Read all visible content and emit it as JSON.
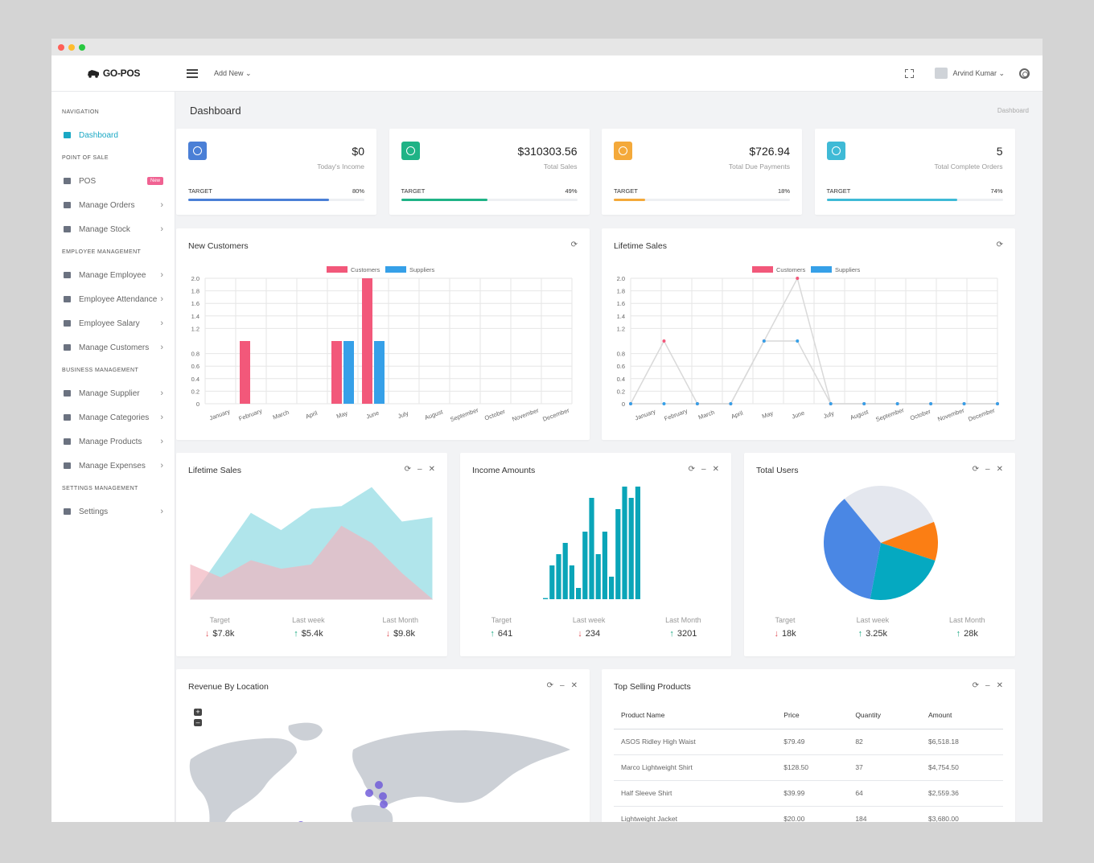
{
  "window": {
    "dots": [
      "#ff5f57",
      "#febc2e",
      "#28c840"
    ]
  },
  "topbar": {
    "logo": "GO-POS",
    "add_new": "Add New ⌄",
    "user_name": "Arvind Kumar ⌄"
  },
  "sidebar": {
    "sections": [
      {
        "title": "NAVIGATION",
        "items": [
          {
            "label": "Dashboard",
            "active": true
          }
        ]
      },
      {
        "title": "POINT OF SALE",
        "items": [
          {
            "label": "POS",
            "badge": "New"
          },
          {
            "label": "Manage Orders"
          },
          {
            "label": "Manage Stock"
          }
        ]
      },
      {
        "title": "EMPLOYEE MANAGEMENT",
        "items": [
          {
            "label": "Manage Employee"
          },
          {
            "label": "Employee Attendance"
          },
          {
            "label": "Employee Salary"
          },
          {
            "label": "Manage Customers"
          }
        ]
      },
      {
        "title": "BUSINESS MANAGEMENT",
        "items": [
          {
            "label": "Manage Supplier"
          },
          {
            "label": "Manage Categories"
          },
          {
            "label": "Manage Products"
          },
          {
            "label": "Manage Expenses"
          }
        ]
      },
      {
        "title": "SETTINGS MANAGEMENT",
        "items": [
          {
            "label": "Settings"
          }
        ]
      }
    ]
  },
  "page": {
    "title": "Dashboard",
    "breadcrumb": "Dashboard"
  },
  "stats": [
    {
      "value": "$0",
      "label": "Today's Income",
      "target_label": "TARGET",
      "percent": "80%",
      "fill": 0.8,
      "color": "#4a7fd6",
      "icon": "aperture-icon"
    },
    {
      "value": "$310303.56",
      "label": "Total Sales",
      "target_label": "TARGET",
      "percent": "49%",
      "fill": 0.49,
      "color": "#1fb386",
      "icon": "cart-icon"
    },
    {
      "value": "$726.94",
      "label": "Total Due Payments",
      "target_label": "TARGET",
      "percent": "18%",
      "fill": 0.18,
      "color": "#f4a93a",
      "icon": "bar-chart-icon"
    },
    {
      "value": "5",
      "label": "Total Complete Orders",
      "target_label": "TARGET",
      "percent": "74%",
      "fill": 0.74,
      "color": "#3fbad6",
      "icon": "chip-icon"
    }
  ],
  "cards": {
    "new_customers": "New Customers",
    "lifetime_sales_line": "Lifetime Sales",
    "lifetime_sales_area": "Lifetime Sales",
    "income_amounts": "Income Amounts",
    "total_users": "Total Users",
    "revenue_by_location": "Revenue By Location",
    "top_selling": "Top Selling Products"
  },
  "kpis": {
    "lifetime": [
      {
        "label": "Target",
        "value": "$7.8k",
        "dir": "down"
      },
      {
        "label": "Last week",
        "value": "$5.4k",
        "dir": "up"
      },
      {
        "label": "Last Month",
        "value": "$9.8k",
        "dir": "down"
      }
    ],
    "income": [
      {
        "label": "Target",
        "value": "641",
        "dir": "up"
      },
      {
        "label": "Last week",
        "value": "234",
        "dir": "down"
      },
      {
        "label": "Last Month",
        "value": "3201",
        "dir": "up"
      }
    ],
    "users": [
      {
        "label": "Target",
        "value": "18k",
        "dir": "down"
      },
      {
        "label": "Last week",
        "value": "3.25k",
        "dir": "up"
      },
      {
        "label": "Last Month",
        "value": "28k",
        "dir": "up"
      }
    ]
  },
  "top_selling": {
    "headers": [
      "Product Name",
      "Price",
      "Quantity",
      "Amount"
    ],
    "rows": [
      [
        "ASOS Ridley High Waist",
        "$79.49",
        "82",
        "$6,518.18"
      ],
      [
        "Marco Lightweight Shirt",
        "$128.50",
        "37",
        "$4,754.50"
      ],
      [
        "Half Sleeve Shirt",
        "$39.99",
        "64",
        "$2,559.36"
      ],
      [
        "Lightweight Jacket",
        "$20.00",
        "184",
        "$3,680.00"
      ]
    ]
  },
  "chart_data": [
    {
      "type": "bar",
      "title": "New Customers",
      "categories": [
        "January",
        "February",
        "March",
        "April",
        "May",
        "June",
        "July",
        "August",
        "September",
        "October",
        "November",
        "December"
      ],
      "series": [
        {
          "name": "Customers",
          "color": "#f2587a",
          "values": [
            0,
            1,
            0,
            0,
            1,
            2,
            0,
            0,
            0,
            0,
            0,
            0
          ]
        },
        {
          "name": "Suppliers",
          "color": "#36a0e8",
          "values": [
            0,
            0,
            0,
            0,
            1,
            1,
            0,
            0,
            0,
            0,
            0,
            0
          ]
        }
      ],
      "yticks": [
        "2.0",
        "1.8",
        "1.6",
        "1.4",
        "1.2",
        "0.8",
        "0.6",
        "0.4",
        "0.2",
        "0"
      ],
      "ylim": [
        0,
        2
      ]
    },
    {
      "type": "line",
      "title": "Lifetime Sales",
      "categories": [
        "January",
        "February",
        "March",
        "April",
        "May",
        "June",
        "July",
        "August",
        "September",
        "October",
        "November",
        "December"
      ],
      "series": [
        {
          "name": "Customers",
          "color": "#f2587a",
          "values": [
            0,
            1,
            0,
            0,
            1,
            2,
            0,
            0,
            0,
            0,
            0,
            0
          ]
        },
        {
          "name": "Suppliers",
          "color": "#36a0e8",
          "values": [
            0,
            0,
            0,
            0,
            1,
            1,
            0,
            0,
            0,
            0,
            0,
            0
          ]
        }
      ],
      "yticks": [
        "2.0",
        "1.8",
        "1.6",
        "1.4",
        "1.2",
        "0.8",
        "0.6",
        "0.4",
        "0.2",
        "0"
      ],
      "ylim": [
        0,
        2
      ]
    },
    {
      "type": "area",
      "title": "Lifetime Sales",
      "series": [
        {
          "name": "a",
          "color": "#8fdbe3",
          "values": [
            0,
            5,
            10,
            8,
            10.5,
            10.8,
            13,
            9,
            9.5
          ]
        },
        {
          "name": "b",
          "color": "#f1b6bf",
          "values": [
            4,
            2.5,
            4.5,
            3.5,
            4,
            8.5,
            6.5,
            3,
            0
          ]
        }
      ],
      "ylim": [
        0,
        13.5
      ]
    },
    {
      "type": "bar",
      "title": "Income Amounts",
      "values": [
        0.1,
        3,
        4,
        5,
        3,
        1,
        6,
        9,
        4,
        6,
        2,
        8,
        10,
        9,
        10
      ],
      "color": "#0aa5b8"
    },
    {
      "type": "pie",
      "title": "Total Users",
      "slices": [
        {
          "name": "grey",
          "value": 30,
          "color": "#e4e7ee"
        },
        {
          "name": "orange",
          "value": 11,
          "color": "#fb7e14"
        },
        {
          "name": "teal",
          "value": 23,
          "color": "#05a9c1"
        },
        {
          "name": "blue",
          "value": 36,
          "color": "#4a87e4"
        }
      ]
    }
  ]
}
